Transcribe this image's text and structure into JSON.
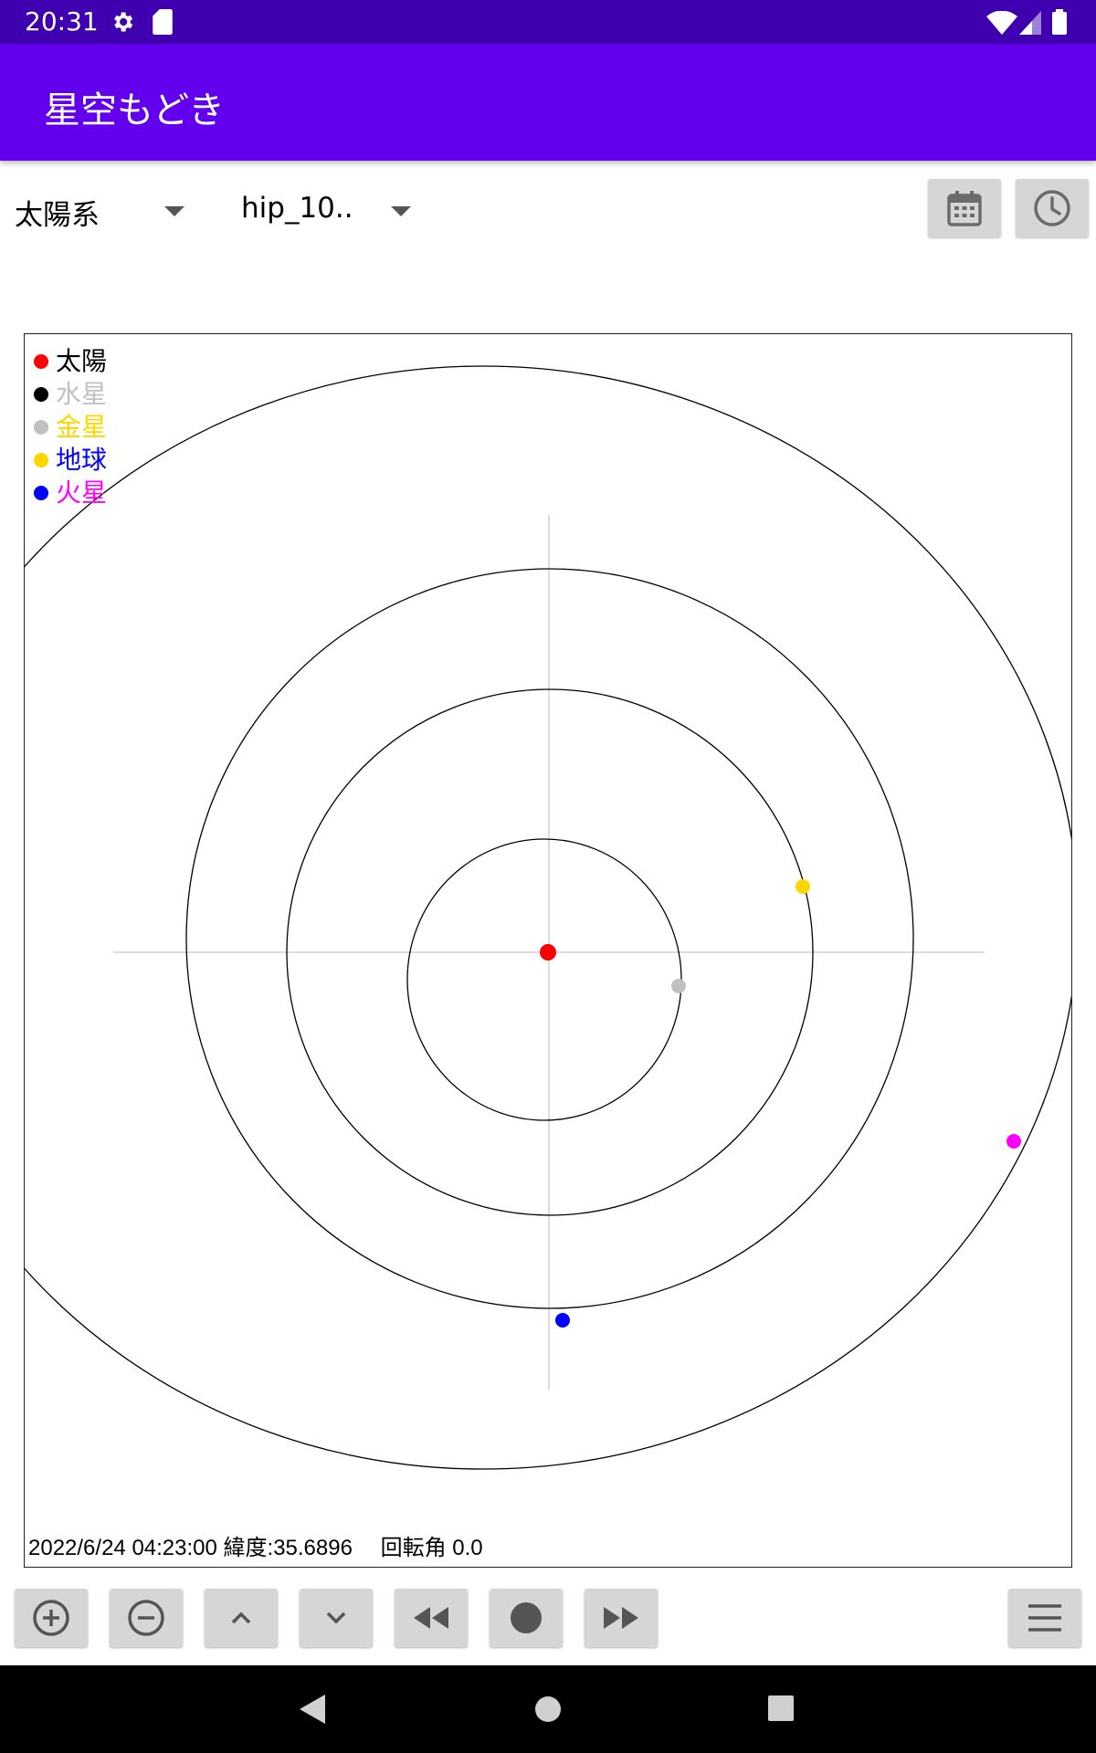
{
  "status_bar": {
    "time": "20:31",
    "icons": [
      "gear-icon",
      "sd-card-icon",
      "wifi-icon",
      "signal-icon",
      "battery-icon"
    ]
  },
  "app_bar": {
    "title": "星空もどき"
  },
  "controls": {
    "system_select": {
      "value": "太陽系"
    },
    "catalog_select": {
      "value": "hip_10.."
    },
    "date_button_icon": "calendar-icon",
    "time_button_icon": "clock-icon"
  },
  "sky_view": {
    "legend": [
      {
        "label": "太陽",
        "dot_color": "#ff0000",
        "text_color": "#000000"
      },
      {
        "label": "水星",
        "dot_color": "#000000",
        "text_color": "#c0c0c0"
      },
      {
        "label": "金星",
        "dot_color": "#c0c0c0",
        "text_color": "#ffd700"
      },
      {
        "label": "地球",
        "dot_color": "#ffd700",
        "text_color": "#0000ff"
      },
      {
        "label": "火星",
        "dot_color": "#0000ff",
        "text_color": "#ff00ff"
      }
    ],
    "planet_colors": {
      "sun": "#ff0000",
      "mercury": "#c0c0c0",
      "venus": "#ffd700",
      "earth": "#0000ff",
      "mars": "#ff00ff"
    },
    "info_text": "2022/6/24 04:23:00 緯度:35.6896　 回転角 0.0"
  },
  "toolbar": {
    "buttons": [
      "zoom-in-icon",
      "zoom-out-icon",
      "chevron-up-icon",
      "chevron-down-icon",
      "rewind-icon",
      "record-icon",
      "fast-forward-icon",
      "menu-icon"
    ]
  },
  "colors": {
    "status_bar": "#3f01b0",
    "app_bar": "#6200ee",
    "button_bg": "#d6d6d6"
  }
}
